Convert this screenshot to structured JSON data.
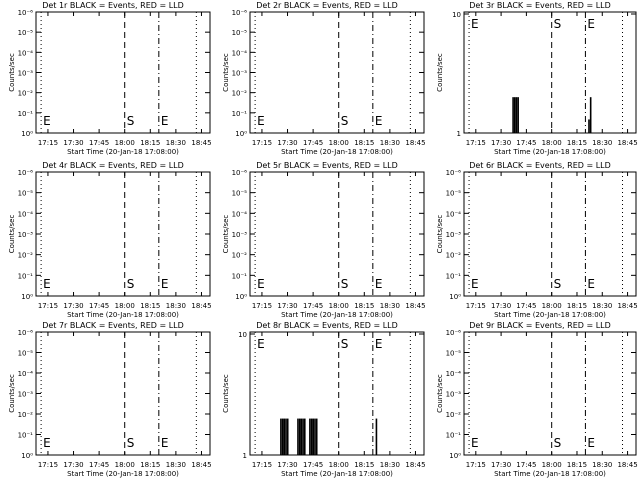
{
  "window": {
    "title": ""
  },
  "colors": {
    "background": "#ffffff",
    "foreground": "#000000",
    "events": "#000000",
    "lld": "#ff0000"
  },
  "chart_data": [
    {
      "type": "bar",
      "title": "Det 1r BLACK = Events, RED = LLD",
      "xlabel": "Start Time (20-Jan-18 17:08:00)",
      "ylabel": "Counts/sec",
      "x_ticks": [
        "17:15",
        "17:30",
        "17:45",
        "18:00",
        "18:15",
        "18:30",
        "18:45"
      ],
      "y_scale": "log",
      "y_ticks": [
        "10⁰",
        "10⁻¹",
        "10⁻²",
        "10⁻³",
        "10⁻⁴",
        "10⁻⁵",
        "10⁻⁶"
      ],
      "markers": [
        {
          "label": "E",
          "line": "dotted"
        },
        {
          "label": "S",
          "line": "dashed"
        },
        {
          "label": "E",
          "line": "dash-dot"
        }
      ],
      "events": []
    },
    {
      "type": "bar",
      "title": "Det 2r BLACK = Events, RED = LLD",
      "xlabel": "Start Time (20-Jan-18 17:08:00)",
      "ylabel": "Counts/sec",
      "x_ticks": [
        "17:15",
        "17:30",
        "17:45",
        "18:00",
        "18:15",
        "18:30",
        "18:45"
      ],
      "y_scale": "log",
      "y_ticks": [
        "10⁰",
        "10⁻¹",
        "10⁻²",
        "10⁻³",
        "10⁻⁴",
        "10⁻⁵",
        "10⁻⁶"
      ],
      "markers": [
        {
          "label": "E",
          "line": "dotted"
        },
        {
          "label": "S",
          "line": "dashed"
        },
        {
          "label": "E",
          "line": "dash-dot"
        }
      ],
      "events": []
    },
    {
      "type": "bar",
      "title": "Det 3r BLACK = Events, RED = LLD",
      "xlabel": "Start Time (20-Jan-18 17:08:00)",
      "ylabel": "Counts/sec",
      "x_ticks": [
        "17:15",
        "17:30",
        "17:45",
        "18:00",
        "18:15",
        "18:30",
        "18:45"
      ],
      "y_scale": "log",
      "y_ticks": [
        "10",
        "1"
      ],
      "markers": [
        {
          "label": "E",
          "line": "dotted"
        },
        {
          "label": "S",
          "line": "dashed"
        },
        {
          "label": "E",
          "line": "dash-dot"
        }
      ],
      "events": [
        {
          "t": "17:37",
          "value": 2
        },
        {
          "t": "17:38",
          "value": 2
        },
        {
          "t": "17:39",
          "value": 2
        },
        {
          "t": "17:40",
          "value": 2
        },
        {
          "t": "18:22",
          "value": 1.3
        },
        {
          "t": "18:23",
          "value": 2
        }
      ]
    },
    {
      "type": "bar",
      "title": "Det 4r BLACK = Events, RED = LLD",
      "xlabel": "Start Time (20-Jan-18 17:08:00)",
      "ylabel": "Counts/sec",
      "x_ticks": [
        "17:15",
        "17:30",
        "17:45",
        "18:00",
        "18:15",
        "18:30",
        "18:45"
      ],
      "y_scale": "log",
      "y_ticks": [
        "10⁰",
        "10⁻¹",
        "10⁻²",
        "10⁻³",
        "10⁻⁴",
        "10⁻⁵",
        "10⁻⁶"
      ],
      "markers": [
        {
          "label": "E",
          "line": "dotted"
        },
        {
          "label": "S",
          "line": "dashed"
        },
        {
          "label": "E",
          "line": "dash-dot"
        }
      ],
      "events": []
    },
    {
      "type": "bar",
      "title": "Det 5r BLACK = Events, RED = LLD",
      "xlabel": "Start Time (20-Jan-18 17:08:00)",
      "ylabel": "Counts/sec",
      "x_ticks": [
        "17:15",
        "17:30",
        "17:45",
        "18:00",
        "18:15",
        "18:30",
        "18:45"
      ],
      "y_scale": "log",
      "y_ticks": [
        "10⁰",
        "10⁻¹",
        "10⁻²",
        "10⁻³",
        "10⁻⁴",
        "10⁻⁵",
        "10⁻⁶"
      ],
      "markers": [
        {
          "label": "E",
          "line": "dotted"
        },
        {
          "label": "S",
          "line": "dashed"
        },
        {
          "label": "E",
          "line": "dash-dot"
        }
      ],
      "events": []
    },
    {
      "type": "bar",
      "title": "Det 6r BLACK = Events, RED = LLD",
      "xlabel": "Start Time (20-Jan-18 17:08:00)",
      "ylabel": "Counts/sec",
      "x_ticks": [
        "17:15",
        "17:30",
        "17:45",
        "18:00",
        "18:15",
        "18:30",
        "18:45"
      ],
      "y_scale": "log",
      "y_ticks": [
        "10⁰",
        "10⁻¹",
        "10⁻²",
        "10⁻³",
        "10⁻⁴",
        "10⁻⁵",
        "10⁻⁶"
      ],
      "markers": [
        {
          "label": "E",
          "line": "dotted"
        },
        {
          "label": "S",
          "line": "dashed"
        },
        {
          "label": "E",
          "line": "dash-dot"
        }
      ],
      "events": []
    },
    {
      "type": "bar",
      "title": "Det 7r BLACK = Events, RED = LLD",
      "xlabel": "Start Time (20-Jan-18 17:08:00)",
      "ylabel": "Counts/sec",
      "x_ticks": [
        "17:15",
        "17:30",
        "17:45",
        "18:00",
        "18:15",
        "18:30",
        "18:45"
      ],
      "y_scale": "log",
      "y_ticks": [
        "10⁰",
        "10⁻¹",
        "10⁻²",
        "10⁻³",
        "10⁻⁴",
        "10⁻⁵",
        "10⁻⁶"
      ],
      "markers": [
        {
          "label": "E",
          "line": "dotted"
        },
        {
          "label": "S",
          "line": "dashed"
        },
        {
          "label": "E",
          "line": "dash-dot"
        }
      ],
      "events": []
    },
    {
      "type": "bar",
      "title": "Det 8r BLACK = Events, RED = LLD",
      "xlabel": "Start Time (20-Jan-18 17:08:00)",
      "ylabel": "Counts/sec",
      "x_ticks": [
        "17:15",
        "17:30",
        "17:45",
        "18:00",
        "18:15",
        "18:30",
        "18:45"
      ],
      "y_scale": "log",
      "y_ticks": [
        "10",
        "1"
      ],
      "markers": [
        {
          "label": "E",
          "line": "dotted"
        },
        {
          "label": "S",
          "line": "dashed"
        },
        {
          "label": "E",
          "line": "dash-dot"
        }
      ],
      "events": [
        {
          "t": "17:26",
          "value": 2
        },
        {
          "t": "17:27",
          "value": 2
        },
        {
          "t": "17:28",
          "value": 2
        },
        {
          "t": "17:29",
          "value": 2
        },
        {
          "t": "17:30",
          "value": 2
        },
        {
          "t": "17:36",
          "value": 2
        },
        {
          "t": "17:37",
          "value": 2
        },
        {
          "t": "17:38",
          "value": 2
        },
        {
          "t": "17:39",
          "value": 2
        },
        {
          "t": "17:40",
          "value": 2
        },
        {
          "t": "17:43",
          "value": 2
        },
        {
          "t": "17:44",
          "value": 2
        },
        {
          "t": "17:45",
          "value": 2
        },
        {
          "t": "17:46",
          "value": 2
        },
        {
          "t": "17:47",
          "value": 2
        },
        {
          "t": "18:22",
          "value": 2
        }
      ]
    },
    {
      "type": "bar",
      "title": "Det 9r BLACK = Events, RED = LLD",
      "xlabel": "Start Time (20-Jan-18 17:08:00)",
      "ylabel": "Counts/sec",
      "x_ticks": [
        "17:15",
        "17:30",
        "17:45",
        "18:00",
        "18:15",
        "18:30",
        "18:45"
      ],
      "y_scale": "log",
      "y_ticks": [
        "10⁰",
        "10⁻¹",
        "10⁻²",
        "10⁻³",
        "10⁻⁴",
        "10⁻⁵",
        "10⁻⁶"
      ],
      "markers": [
        {
          "label": "E",
          "line": "dotted"
        },
        {
          "label": "S",
          "line": "dashed"
        },
        {
          "label": "E",
          "line": "dash-dot"
        }
      ],
      "events": []
    }
  ]
}
